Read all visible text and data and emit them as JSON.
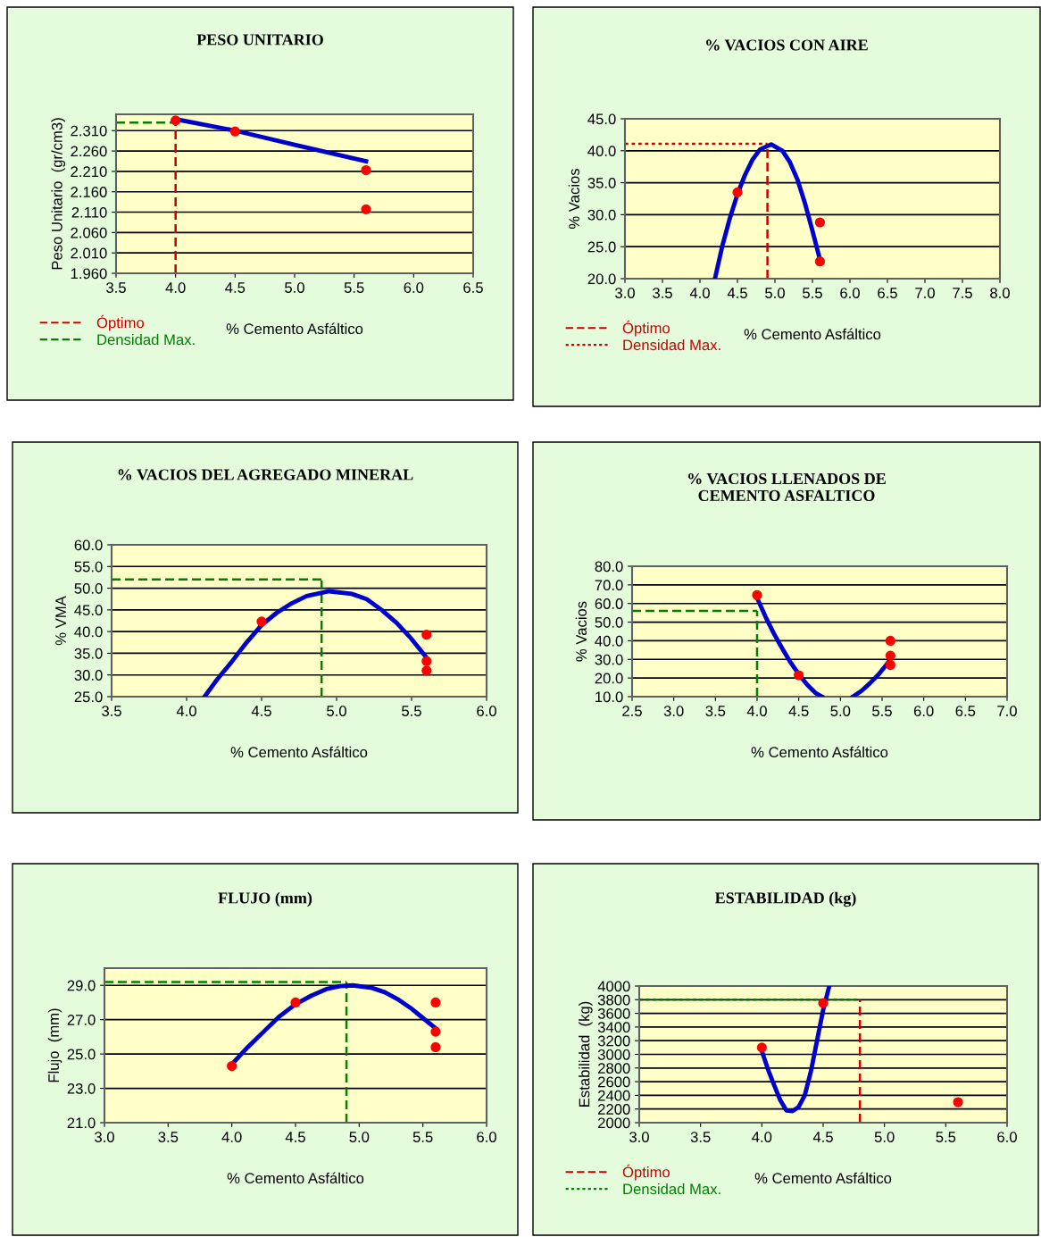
{
  "chart_data": [
    {
      "type": "scatter",
      "title": "PESO UNITARIO",
      "xlabel": "% Cemento Asfáltico",
      "ylabel": "Peso Unitario  (gr/cm3)",
      "series": [
        {
          "type": "line",
          "x": [
            4.0,
            4.5,
            5.0,
            5.6
          ],
          "values": [
            2.338,
            2.31,
            2.275,
            2.235
          ],
          "color": "#0000cc"
        },
        {
          "marker": "circle",
          "x": [
            4.0,
            4.5,
            5.6,
            5.6
          ],
          "values": [
            2.335,
            2.308,
            2.213,
            2.117
          ],
          "color": "#ff0000"
        }
      ],
      "xlim": [
        3.5,
        6.5
      ],
      "xticks": [
        3.5,
        {
          "value": 4,
          "label": "4.0"
        },
        4.5,
        {
          "value": 5,
          "label": "5.0"
        },
        5.5,
        {
          "value": 6,
          "label": "6.0"
        },
        6.5
      ],
      "ylim": [
        1.96,
        2.35
      ],
      "yticks": [
        {
          "value": 1.96,
          "label": "1.960"
        },
        {
          "value": 2.01,
          "label": "2.010"
        },
        {
          "value": 2.06,
          "label": "2.060"
        },
        {
          "value": 2.11,
          "label": "2.110"
        },
        {
          "value": 2.16,
          "label": "2.160"
        },
        {
          "value": 2.21,
          "label": "2.210"
        },
        {
          "value": 2.26,
          "label": "2.260"
        },
        {
          "value": 2.31,
          "label": "2.310"
        }
      ],
      "ref_lines": [
        {
          "axis": "x",
          "value": 4.0,
          "label": "Óptimo",
          "color": "#cc0000",
          "line_style": "dashed"
        },
        {
          "axis": "y",
          "value": 2.33,
          "label": "Densidad Max.",
          "color": "#008000",
          "line_style": "dashed"
        }
      ],
      "grid": "y",
      "legend": "bottom left"
    },
    {
      "type": "scatter",
      "title": "% VACIOS CON AIRE",
      "xlabel": "% Cemento Asfáltico",
      "ylabel": "% Vacios",
      "series": [
        {
          "type": "line",
          "x": [
            4.2,
            4.3,
            4.4,
            4.5,
            4.6,
            4.7,
            4.8,
            4.95,
            5.1,
            5.2,
            5.3,
            5.4,
            5.5,
            5.6
          ],
          "values": [
            20.0,
            25.2,
            29.5,
            33.2,
            36.2,
            38.6,
            40.2,
            41.0,
            40.0,
            38.2,
            35.5,
            31.8,
            27.5,
            23.0
          ],
          "color": "#0000cc"
        },
        {
          "marker": "circle",
          "x": [
            4.5,
            5.6,
            5.6
          ],
          "values": [
            33.5,
            28.8,
            22.7
          ],
          "color": "#ff0000"
        }
      ],
      "xlim": [
        3.0,
        8.0
      ],
      "xticks": [
        {
          "value": 3,
          "label": "3.0"
        },
        3.5,
        {
          "value": 4,
          "label": "4.0"
        },
        4.5,
        {
          "value": 5,
          "label": "5.0"
        },
        5.5,
        {
          "value": 6,
          "label": "6.0"
        },
        6.5,
        {
          "value": 7,
          "label": "7.0"
        },
        7.5,
        {
          "value": 8,
          "label": "8.0"
        }
      ],
      "ylim": [
        20.0,
        45.0
      ],
      "yticks": [
        {
          "value": 20,
          "label": "20.0"
        },
        {
          "value": 25,
          "label": "25.0"
        },
        {
          "value": 30,
          "label": "30.0"
        },
        {
          "value": 35,
          "label": "35.0"
        },
        {
          "value": 40,
          "label": "40.0"
        },
        {
          "value": 45,
          "label": "45.0"
        }
      ],
      "ref_lines": [
        {
          "axis": "x",
          "value": 4.9,
          "label": "Óptimo",
          "color": "#cc0000",
          "line_style": "dashed"
        },
        {
          "axis": "y",
          "value": 41.1,
          "label": "Densidad Max.",
          "color": "#cc0000",
          "line_style": "dotted"
        }
      ],
      "grid": "y",
      "legend": "bottom left"
    },
    {
      "type": "scatter",
      "title": "% VACIOS DEL AGREGADO MINERAL",
      "xlabel": "% Cemento Asfáltico",
      "ylabel": "% VMA",
      "series": [
        {
          "type": "line",
          "x": [
            4.12,
            4.2,
            4.3,
            4.4,
            4.5,
            4.6,
            4.7,
            4.8,
            4.95,
            5.1,
            5.2,
            5.3,
            5.4,
            5.5,
            5.6
          ],
          "values": [
            25.0,
            28.8,
            33.0,
            37.5,
            41.5,
            44.3,
            46.5,
            48.2,
            49.3,
            48.7,
            47.5,
            45.0,
            42.0,
            38.3,
            34.0
          ],
          "color": "#0000cc"
        },
        {
          "marker": "circle",
          "x": [
            4.5,
            5.6,
            5.6,
            5.6
          ],
          "values": [
            42.3,
            39.3,
            33.2,
            31.0
          ],
          "color": "#ff0000"
        }
      ],
      "xlim": [
        3.5,
        6.0
      ],
      "xticks": [
        3.5,
        {
          "value": 4,
          "label": "4.0"
        },
        4.5,
        {
          "value": 5,
          "label": "5.0"
        },
        5.5,
        {
          "value": 6,
          "label": "6.0"
        }
      ],
      "ylim": [
        25.0,
        60.0
      ],
      "yticks": [
        {
          "value": 25,
          "label": "25.0"
        },
        {
          "value": 30,
          "label": "30.0"
        },
        {
          "value": 35,
          "label": "35.0"
        },
        {
          "value": 40,
          "label": "40.0"
        },
        {
          "value": 45,
          "label": "45.0"
        },
        {
          "value": 50,
          "label": "50.0"
        },
        {
          "value": 55,
          "label": "55.0"
        },
        {
          "value": 60,
          "label": "60.0"
        }
      ],
      "ref_lines": [
        {
          "axis": "x",
          "value": 4.9,
          "color": "#008000",
          "line_style": "dashed"
        },
        {
          "axis": "y",
          "value": 52.0,
          "color": "#008000",
          "line_style": "dashed"
        }
      ],
      "grid": "y"
    },
    {
      "type": "scatter",
      "title": "% VACIOS LLENADOS DE\nCEMENTO ASFALTICO",
      "xlabel": "% Cemento Asfáltico",
      "ylabel": "% Vacios",
      "series": [
        {
          "type": "line",
          "x": [
            4.0,
            4.1,
            4.2,
            4.3,
            4.4,
            4.5,
            4.6,
            4.7,
            4.78,
            4.95,
            5.15,
            5.25,
            5.35,
            5.45,
            5.55,
            5.6
          ],
          "values": [
            63.0,
            53.0,
            44.0,
            36.0,
            28.5,
            22.0,
            16.5,
            12.0,
            10.0,
            null,
            10.0,
            13.0,
            17.0,
            21.5,
            27.0,
            30.0
          ],
          "color": "#0000cc"
        },
        {
          "marker": "circle",
          "x": [
            4.0,
            4.5,
            5.6,
            5.6,
            5.6
          ],
          "values": [
            64.5,
            21.5,
            40.0,
            32.0,
            27.0
          ],
          "color": "#ff0000"
        }
      ],
      "xlim": [
        2.5,
        7.0
      ],
      "xticks": [
        2.5,
        {
          "value": 3,
          "label": "3.0"
        },
        3.5,
        {
          "value": 4,
          "label": "4.0"
        },
        4.5,
        {
          "value": 5,
          "label": "5.0"
        },
        5.5,
        {
          "value": 6,
          "label": "6.0"
        },
        6.5,
        {
          "value": 7,
          "label": "7.0"
        }
      ],
      "ylim": [
        10.0,
        80.0
      ],
      "yticks": [
        {
          "value": 10,
          "label": "10.0"
        },
        {
          "value": 20,
          "label": "20.0"
        },
        {
          "value": 30,
          "label": "30.0"
        },
        {
          "value": 40,
          "label": "40.0"
        },
        {
          "value": 50,
          "label": "50.0"
        },
        {
          "value": 60,
          "label": "60.0"
        },
        {
          "value": 70,
          "label": "70.0"
        },
        {
          "value": 80,
          "label": "80.0"
        }
      ],
      "ref_lines": [
        {
          "axis": "x",
          "value": 4.0,
          "color": "#008000",
          "line_style": "dashed"
        },
        {
          "axis": "y",
          "value": 56.0,
          "color": "#008000",
          "line_style": "dashed"
        }
      ],
      "grid": "y"
    },
    {
      "type": "scatter",
      "title": "FLUJO (mm)",
      "xlabel": "% Cemento Asfáltico",
      "ylabel": "Flujo  (mm)",
      "series": [
        {
          "type": "line",
          "x": [
            4.0,
            4.125,
            4.25,
            4.375,
            4.5,
            4.625,
            4.75,
            4.85,
            4.95,
            5.1,
            5.2,
            5.3,
            5.4,
            5.5,
            5.6
          ],
          "values": [
            24.4,
            25.4,
            26.3,
            27.2,
            27.9,
            28.4,
            28.8,
            28.95,
            29.0,
            28.85,
            28.6,
            28.2,
            27.7,
            27.1,
            26.5
          ],
          "color": "#0000cc"
        },
        {
          "marker": "circle",
          "x": [
            4.0,
            4.5,
            5.6,
            5.6,
            5.6
          ],
          "values": [
            24.3,
            28.0,
            28.0,
            26.3,
            25.4
          ],
          "color": "#ff0000"
        }
      ],
      "xlim": [
        3.0,
        6.0
      ],
      "xticks": [
        {
          "value": 3,
          "label": "3.0"
        },
        3.5,
        {
          "value": 4,
          "label": "4.0"
        },
        4.5,
        {
          "value": 5,
          "label": "5.0"
        },
        5.5,
        {
          "value": 6,
          "label": "6.0"
        }
      ],
      "ylim": [
        21.0,
        30.0
      ],
      "yticks": [
        {
          "value": 21,
          "label": "21.0"
        },
        {
          "value": 23,
          "label": "23.0"
        },
        {
          "value": 25,
          "label": "25.0"
        },
        {
          "value": 27,
          "label": "27.0"
        },
        {
          "value": 29,
          "label": "29.0"
        }
      ],
      "ref_lines": [
        {
          "axis": "x",
          "value": 4.9,
          "color": "#008000",
          "line_style": "dashed"
        },
        {
          "axis": "y",
          "value": 29.2,
          "color": "#008000",
          "line_style": "dashed"
        }
      ],
      "grid": "y"
    },
    {
      "type": "scatter",
      "title": "ESTABILIDAD (kg)",
      "xlabel": "% Cemento Asfáltico",
      "ylabel": "Estabilidad  (kg)",
      "series": [
        {
          "type": "line",
          "x": [
            4.0,
            4.05,
            4.1,
            4.15,
            4.2,
            4.25,
            4.3,
            4.35,
            4.4,
            4.45,
            4.5,
            4.55
          ],
          "values": [
            3050,
            2780,
            2550,
            2330,
            2180,
            2170,
            2230,
            2400,
            2750,
            3200,
            3650,
            4000
          ],
          "color": "#0000cc"
        },
        {
          "marker": "circle",
          "x": [
            4.0,
            4.5,
            5.6
          ],
          "values": [
            3100,
            3750,
            2300
          ],
          "color": "#ff0000"
        }
      ],
      "xlim": [
        3.0,
        6.0
      ],
      "xticks": [
        {
          "value": 3,
          "label": "3.0"
        },
        3.5,
        {
          "value": 4,
          "label": "4.0"
        },
        4.5,
        {
          "value": 5,
          "label": "5.0"
        },
        5.5,
        {
          "value": 6,
          "label": "6.0"
        }
      ],
      "ylim": [
        2000,
        4000
      ],
      "yticks": [
        2000,
        2200,
        2400,
        2600,
        2800,
        3000,
        3200,
        3400,
        3600,
        3800,
        4000
      ],
      "ref_lines": [
        {
          "axis": "x",
          "value": 4.8,
          "label": "Óptimo",
          "color": "#cc0000",
          "line_style": "dashed"
        },
        {
          "axis": "y",
          "value": 3800,
          "label": "Densidad Max.",
          "color": "#008000",
          "line_style": "dotted"
        }
      ],
      "grid": "y",
      "legend": "bottom left"
    }
  ]
}
